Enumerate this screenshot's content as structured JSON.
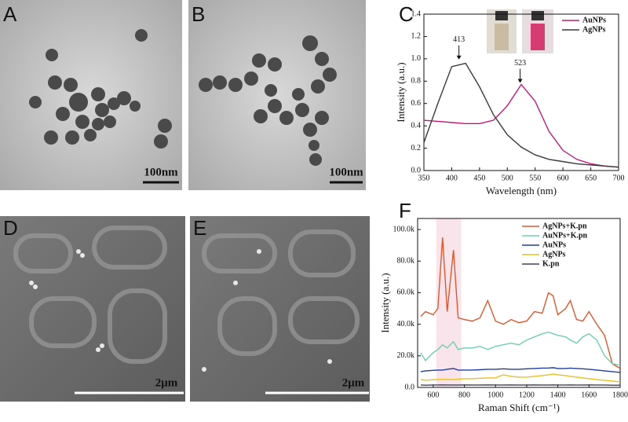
{
  "panel_labels": [
    "A",
    "B",
    "C",
    "D",
    "E",
    "F"
  ],
  "scale_bars": [
    "100nm",
    "100nm",
    "2μm",
    "2μm"
  ],
  "chart_data": [
    {
      "type": "line",
      "x_label": "Wavelength (nm)",
      "y_label": "Intensity (a.u.)",
      "x": [
        350,
        375,
        400,
        425,
        450,
        475,
        500,
        525,
        550,
        575,
        600,
        625,
        650,
        675,
        700
      ],
      "series": [
        {
          "name": "AuNPs",
          "color": "#c2187a",
          "values": [
            0.45,
            0.44,
            0.43,
            0.42,
            0.42,
            0.45,
            0.58,
            0.77,
            0.62,
            0.35,
            0.18,
            0.1,
            0.06,
            0.04,
            0.03
          ]
        },
        {
          "name": "AgNPs",
          "color": "#3a3a3a",
          "values": [
            0.25,
            0.6,
            0.93,
            0.96,
            0.75,
            0.5,
            0.32,
            0.21,
            0.14,
            0.1,
            0.08,
            0.06,
            0.05,
            0.04,
            0.03
          ]
        }
      ],
      "annotations": [
        {
          "text": "413",
          "x": 413,
          "y": 0.98
        },
        {
          "text": "523",
          "x": 523,
          "y": 0.77
        }
      ],
      "xlim": [
        350,
        700
      ],
      "xticks": [
        350,
        400,
        450,
        500,
        550,
        600,
        650,
        700
      ],
      "ylim": [
        0,
        1.4
      ],
      "yticks": [
        {
          "value": 0,
          "label": "0.0"
        },
        0.2,
        0.4,
        0.6,
        0.8,
        {
          "value": 1,
          "label": "1.0"
        },
        1.2,
        1.4
      ],
      "legend": "upper right"
    },
    {
      "type": "line",
      "x_label": "Raman Shift (cm⁻¹)",
      "y_label": "Intensity (a.u.)",
      "x": [
        520,
        550,
        600,
        630,
        660,
        690,
        730,
        760,
        800,
        850,
        900,
        950,
        1000,
        1050,
        1100,
        1150,
        1200,
        1250,
        1300,
        1340,
        1370,
        1400,
        1450,
        1480,
        1520,
        1560,
        1600,
        1650,
        1700,
        1750,
        1800
      ],
      "series": [
        {
          "name": "AgNPs+K.pn",
          "color": "#e0582a",
          "values": [
            45000,
            48000,
            46000,
            50000,
            95000,
            48000,
            87000,
            44000,
            43000,
            42000,
            44000,
            55000,
            42000,
            40000,
            43000,
            41000,
            42000,
            48000,
            47000,
            60000,
            58000,
            46000,
            50000,
            55000,
            43000,
            42000,
            48000,
            40000,
            33000,
            15000,
            12000
          ]
        },
        {
          "name": "AuNPs+K.pn",
          "color": "#6fcfb2",
          "values": [
            22000,
            17000,
            22000,
            24000,
            27000,
            25000,
            29000,
            24000,
            25000,
            25000,
            26000,
            24000,
            26000,
            27000,
            28000,
            27000,
            30000,
            32000,
            34000,
            35000,
            34000,
            33000,
            32000,
            30000,
            28000,
            32000,
            34000,
            30000,
            20000,
            15000,
            14000
          ]
        },
        {
          "name": "AuNPs",
          "color": "#1f3e9e",
          "values": [
            10000,
            10500,
            10800,
            11000,
            11000,
            11500,
            12000,
            11000,
            11000,
            11000,
            11200,
            11500,
            11500,
            11800,
            11500,
            11500,
            11800,
            12000,
            12200,
            12300,
            12500,
            12000,
            12000,
            12200,
            12000,
            11800,
            11500,
            11000,
            10500,
            10000,
            9500
          ]
        },
        {
          "name": "AgNPs",
          "color": "#e8c020",
          "values": [
            5000,
            4500,
            4800,
            5000,
            5200,
            5000,
            5000,
            5200,
            5500,
            5500,
            5800,
            6000,
            6000,
            8000,
            7000,
            6500,
            6500,
            7000,
            7500,
            8000,
            8500,
            8000,
            7500,
            7000,
            6500,
            6000,
            5500,
            5000,
            4500,
            4000,
            3500
          ]
        },
        {
          "name": "K.pn",
          "color": "#404060",
          "values": [
            1500,
            1400,
            1500,
            1500,
            1600,
            1500,
            1500,
            1500,
            1600,
            1500,
            1500,
            1600,
            1500,
            1500,
            1600,
            1500,
            1500,
            1600,
            1500,
            1500,
            1600,
            1500,
            1500,
            1600,
            1500,
            1500,
            1600,
            1500,
            1500,
            1400,
            1400
          ]
        }
      ],
      "highlight_x": [
        620,
        780
      ],
      "xlim": [
        500,
        1800
      ],
      "xticks": [
        600,
        800,
        1000,
        1200,
        1400,
        1600,
        1800
      ],
      "ylim": [
        0,
        107000
      ],
      "yticks": [
        {
          "value": 0,
          "label": "0.0"
        },
        {
          "value": 20000,
          "label": "20.0k"
        },
        {
          "value": 40000,
          "label": "40.0k"
        },
        {
          "value": 60000,
          "label": "60.0k"
        },
        {
          "value": 80000,
          "label": "80.0k"
        },
        {
          "value": 100000,
          "label": "100.0k"
        }
      ],
      "legend": "upper right"
    }
  ]
}
